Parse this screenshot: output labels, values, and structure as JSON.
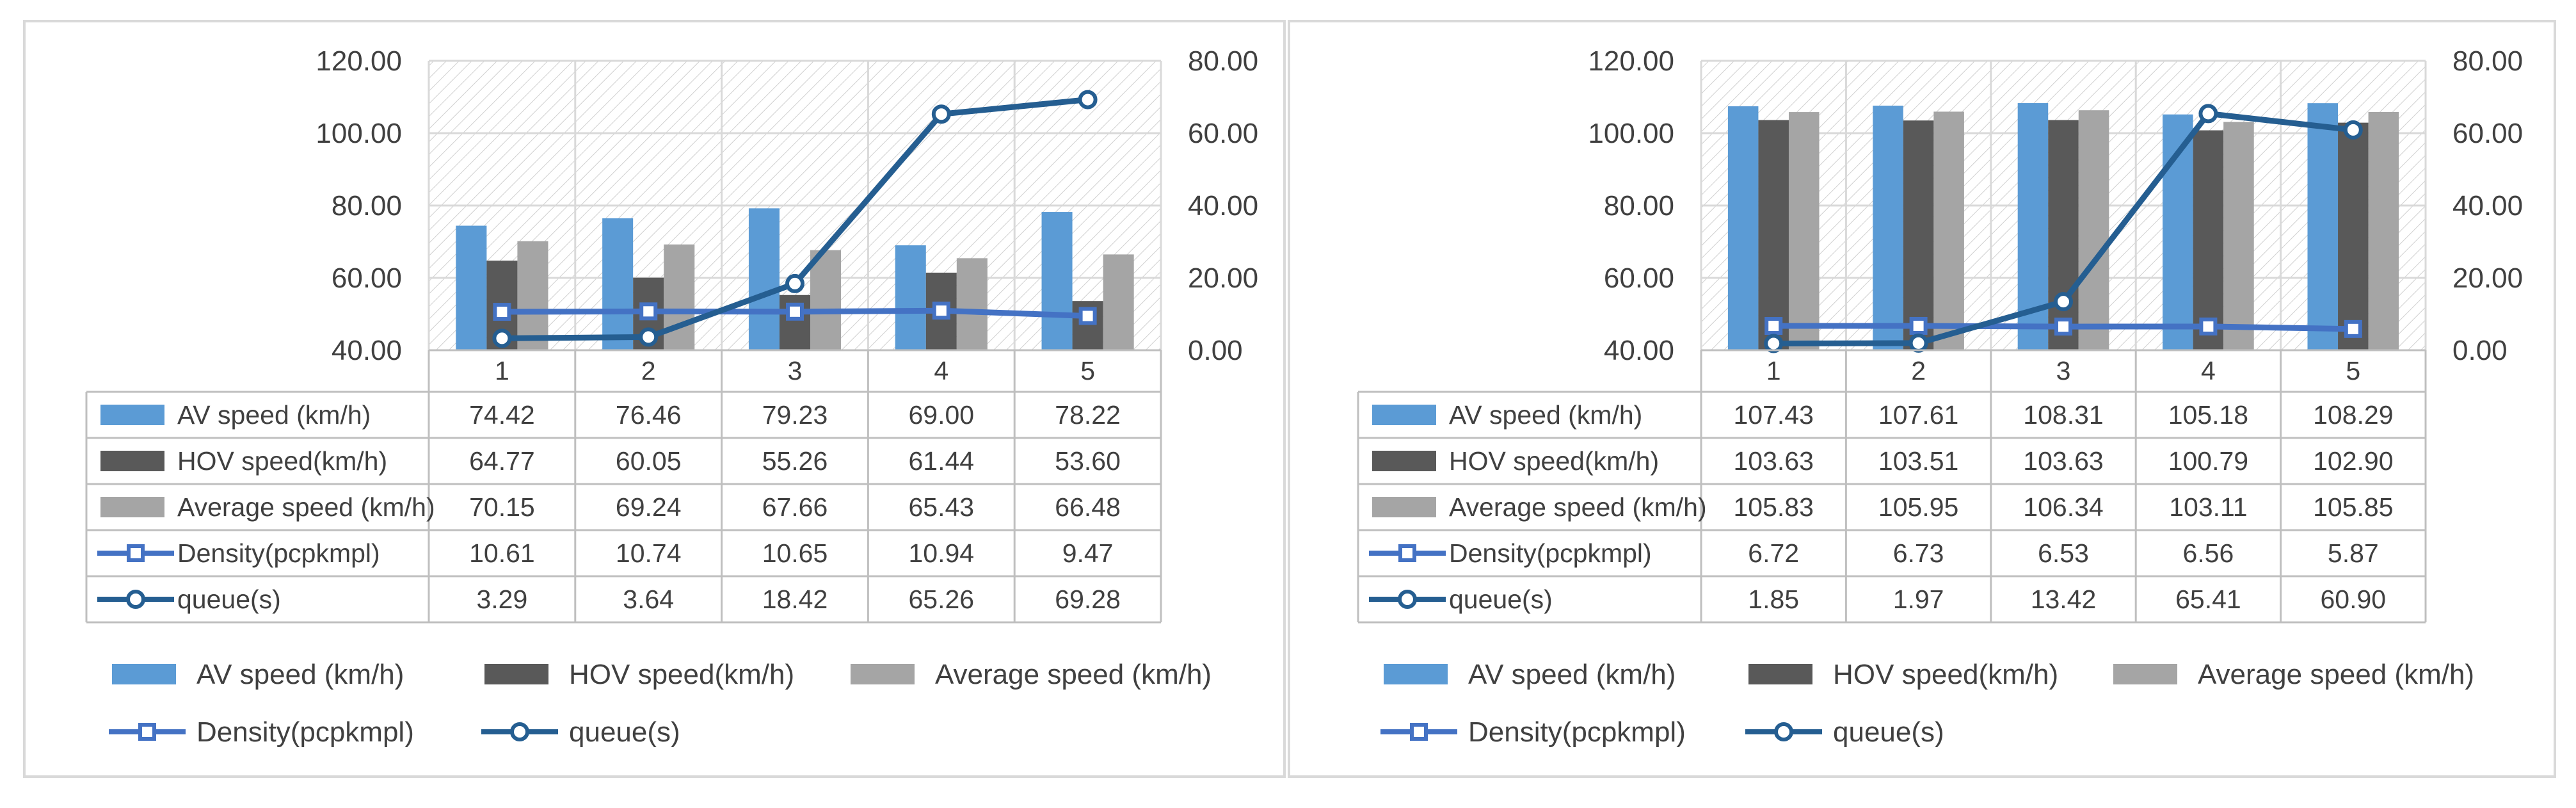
{
  "chart_data": [
    {
      "type": "bar",
      "categories": [
        "1",
        "2",
        "3",
        "4",
        "5"
      ],
      "ylim": [
        40,
        120
      ],
      "y2lim": [
        0,
        80
      ],
      "yticks": [
        "40.00",
        "60.00",
        "80.00",
        "100.00",
        "120.00"
      ],
      "y2ticks": [
        "0.00",
        "20.00",
        "40.00",
        "60.00",
        "80.00"
      ],
      "grid": true,
      "legend_position": "bottom",
      "series": [
        {
          "name": "AV speed (km/h)",
          "kind": "bar",
          "axis": "left",
          "color": "#5B9BD5",
          "values": [
            74.42,
            76.46,
            79.23,
            69.0,
            78.22
          ],
          "labels": [
            "74.42",
            "76.46",
            "79.23",
            "69.00",
            "78.22"
          ]
        },
        {
          "name": "HOV speed(km/h)",
          "kind": "bar",
          "axis": "left",
          "color": "#595959",
          "values": [
            64.77,
            60.05,
            55.26,
            61.44,
            53.6
          ],
          "labels": [
            "64.77",
            "60.05",
            "55.26",
            "61.44",
            "53.60"
          ]
        },
        {
          "name": "Average speed (km/h)",
          "kind": "bar",
          "axis": "left",
          "color": "#A5A5A5",
          "values": [
            70.15,
            69.24,
            67.66,
            65.43,
            66.48
          ],
          "labels": [
            "70.15",
            "69.24",
            "67.66",
            "65.43",
            "66.48"
          ]
        },
        {
          "name": "Density(pcpkmpl)",
          "kind": "line",
          "marker": "square",
          "axis": "right",
          "color": "#4472C4",
          "values": [
            10.61,
            10.74,
            10.65,
            10.94,
            9.47
          ],
          "labels": [
            "10.61",
            "10.74",
            "10.65",
            "10.94",
            "9.47"
          ]
        },
        {
          "name": "queue(s)",
          "kind": "line",
          "marker": "circle",
          "axis": "right",
          "color": "#255E91",
          "values": [
            3.29,
            3.64,
            18.42,
            65.26,
            69.28
          ],
          "labels": [
            "3.29",
            "3.64",
            "18.42",
            "65.26",
            "69.28"
          ]
        }
      ]
    },
    {
      "type": "bar",
      "categories": [
        "1",
        "2",
        "3",
        "4",
        "5"
      ],
      "ylim": [
        40,
        120
      ],
      "y2lim": [
        0,
        80
      ],
      "yticks": [
        "40.00",
        "60.00",
        "80.00",
        "100.00",
        "120.00"
      ],
      "y2ticks": [
        "0.00",
        "20.00",
        "40.00",
        "60.00",
        "80.00"
      ],
      "grid": true,
      "legend_position": "bottom",
      "series": [
        {
          "name": "AV speed (km/h)",
          "kind": "bar",
          "axis": "left",
          "color": "#5B9BD5",
          "values": [
            107.43,
            107.61,
            108.31,
            105.18,
            108.29
          ],
          "labels": [
            "107.43",
            "107.61",
            "108.31",
            "105.18",
            "108.29"
          ]
        },
        {
          "name": "HOV speed(km/h)",
          "kind": "bar",
          "axis": "left",
          "color": "#595959",
          "values": [
            103.63,
            103.51,
            103.63,
            100.79,
            102.9
          ],
          "labels": [
            "103.63",
            "103.51",
            "103.63",
            "100.79",
            "102.90"
          ]
        },
        {
          "name": "Average speed (km/h)",
          "kind": "bar",
          "axis": "left",
          "color": "#A5A5A5",
          "values": [
            105.83,
            105.95,
            106.34,
            103.11,
            105.85
          ],
          "labels": [
            "105.83",
            "105.95",
            "106.34",
            "103.11",
            "105.85"
          ]
        },
        {
          "name": "Density(pcpkmpl)",
          "kind": "line",
          "marker": "square",
          "axis": "right",
          "color": "#4472C4",
          "values": [
            6.72,
            6.73,
            6.53,
            6.56,
            5.87
          ],
          "labels": [
            "6.72",
            "6.73",
            "6.53",
            "6.56",
            "5.87"
          ]
        },
        {
          "name": "queue(s)",
          "kind": "line",
          "marker": "circle",
          "axis": "right",
          "color": "#255E91",
          "values": [
            1.85,
            1.97,
            13.42,
            65.41,
            60.9
          ],
          "labels": [
            "1.85",
            "1.97",
            "13.42",
            "65.41",
            "60.90"
          ]
        }
      ]
    }
  ]
}
